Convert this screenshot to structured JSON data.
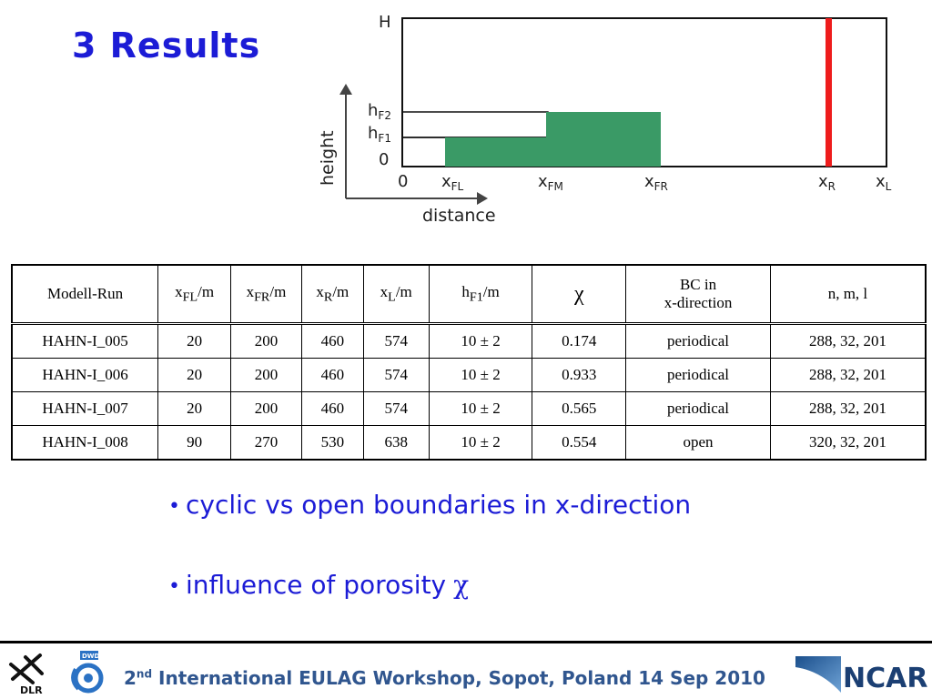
{
  "slide": {
    "title": "3 Results"
  },
  "diagram": {
    "y_axis_label": "height",
    "x_axis_label": "distance",
    "y_ticks": {
      "H": "H",
      "hF2_base": "h",
      "hF2_sub": "F2",
      "hF1_base": "h",
      "hF1_sub": "F1",
      "zero": "0"
    },
    "x_ticks": {
      "zero": "0",
      "xFL_base": "x",
      "xFL_sub": "FL",
      "xFM_base": "x",
      "xFM_sub": "FM",
      "xFR_base": "x",
      "xFR_sub": "FR",
      "xR_base": "x",
      "xR_sub": "R",
      "xL_base": "x",
      "xL_sub": "L"
    },
    "colors": {
      "forest": "#3a9a66",
      "boundary": "#ee1c1c",
      "frame": "#111111"
    }
  },
  "table": {
    "headers": {
      "run": "Modell-Run",
      "xfl_base": "x",
      "xfl_sub": "FL",
      "xfl_unit": "/m",
      "xfr_base": "x",
      "xfr_sub": "FR",
      "xfr_unit": "/m",
      "xr_base": "x",
      "xr_sub": "R",
      "xr_unit": "/m",
      "xl_base": "x",
      "xl_sub": "L",
      "xl_unit": "/m",
      "hf1_base": "h",
      "hf1_sub": "F1",
      "hf1_unit": "/m",
      "chi": "χ",
      "bc_line1": "BC in",
      "bc_line2": "x-direction",
      "nml": "n, m, l"
    },
    "rows": [
      {
        "run": "HAHN-I_005",
        "xfl": "20",
        "xfr": "200",
        "xr": "460",
        "xl": "574",
        "hf1": "10 ± 2",
        "chi": "0.174",
        "bc": "periodical",
        "nml": "288, 32, 201"
      },
      {
        "run": "HAHN-I_006",
        "xfl": "20",
        "xfr": "200",
        "xr": "460",
        "xl": "574",
        "hf1": "10 ± 2",
        "chi": "0.933",
        "bc": "periodical",
        "nml": "288, 32, 201"
      },
      {
        "run": "HAHN-I_007",
        "xfl": "20",
        "xfr": "200",
        "xr": "460",
        "xl": "574",
        "hf1": "10 ± 2",
        "chi": "0.565",
        "bc": "periodical",
        "nml": "288, 32, 201"
      },
      {
        "run": "HAHN-I_008",
        "xfl": "90",
        "xfr": "270",
        "xr": "530",
        "xl": "638",
        "hf1": "10 ± 2",
        "chi": "0.554",
        "bc": "open",
        "nml": "320, 32, 201"
      }
    ]
  },
  "bullets": [
    {
      "text": "cyclic vs open boundaries in x-direction",
      "symbol": ""
    },
    {
      "text": "influence of porosity",
      "symbol": "χ"
    }
  ],
  "footer": {
    "ordinal": "2",
    "ordinal_sup": "nd",
    "text": " International EULAG Workshop, Sopot, Poland 14 Sep 2010",
    "logo_dlr": "DLR",
    "logo_dwd": "DWD",
    "logo_ncar": "NCAR"
  }
}
